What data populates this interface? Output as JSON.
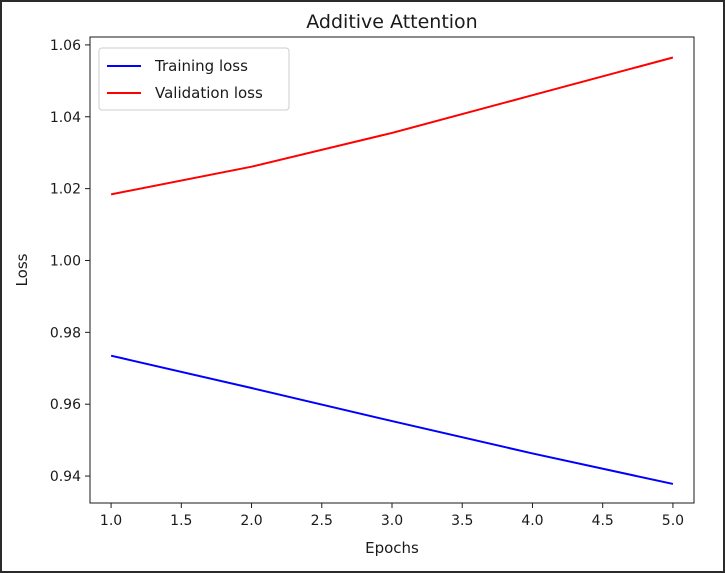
{
  "chart_data": {
    "type": "line",
    "title": "Additive Attention",
    "xlabel": "Epochs",
    "ylabel": "Loss",
    "x": [
      1.0,
      2.0,
      3.0,
      4.0,
      5.0
    ],
    "series": [
      {
        "name": "Training loss",
        "color": "#0000ff",
        "values": [
          0.9735,
          0.9645,
          0.9553,
          0.9463,
          0.9378
        ]
      },
      {
        "name": "Validation loss",
        "color": "#ff0000",
        "values": [
          1.0184,
          1.0261,
          1.0355,
          1.046,
          1.0565
        ]
      }
    ],
    "xlim": [
      0.85,
      5.15
    ],
    "ylim": [
      0.9325,
      1.0622
    ],
    "xticks": [
      "1.0",
      "1.5",
      "2.0",
      "2.5",
      "3.0",
      "3.5",
      "4.0",
      "4.5",
      "5.0"
    ],
    "yticks": [
      "0.94",
      "0.96",
      "0.98",
      "1.00",
      "1.02",
      "1.04",
      "1.06"
    ],
    "legend_position": "top-left",
    "grid": false
  }
}
